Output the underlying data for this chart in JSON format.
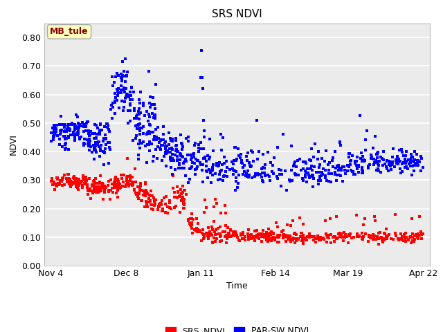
{
  "title": "SRS NDVI",
  "xlabel": "Time",
  "ylabel": "NDVI",
  "ylim": [
    0.0,
    0.85
  ],
  "yticks": [
    0.0,
    0.1,
    0.2,
    0.3,
    0.4,
    0.5,
    0.6,
    0.7,
    0.8
  ],
  "ytick_labels": [
    "0.00",
    "0.10",
    "0.20",
    "0.30",
    "0.40",
    "0.50",
    "0.60",
    "0.70",
    "0.80"
  ],
  "annotation": "MB_tule",
  "annotation_color": "#8B0000",
  "annotation_bg": "#FFFFC0",
  "annotation_edge": "#AAAAAA",
  "srs_color": "#FF0000",
  "par_color": "#0000FF",
  "legend_labels": [
    "SRS_NDVI",
    "PAR-SW NDVI"
  ],
  "marker_size": 3,
  "plot_bg": "#EBEBEB",
  "fig_bg": "#FFFFFF",
  "grid_color": "#FFFFFF",
  "x_tick_labels": [
    "Nov 4",
    "Dec 8",
    "Jan 11",
    "Feb 14",
    "Mar 19",
    "Apr 22"
  ],
  "x_tick_positions": [
    0,
    34,
    68,
    102,
    135,
    169
  ]
}
